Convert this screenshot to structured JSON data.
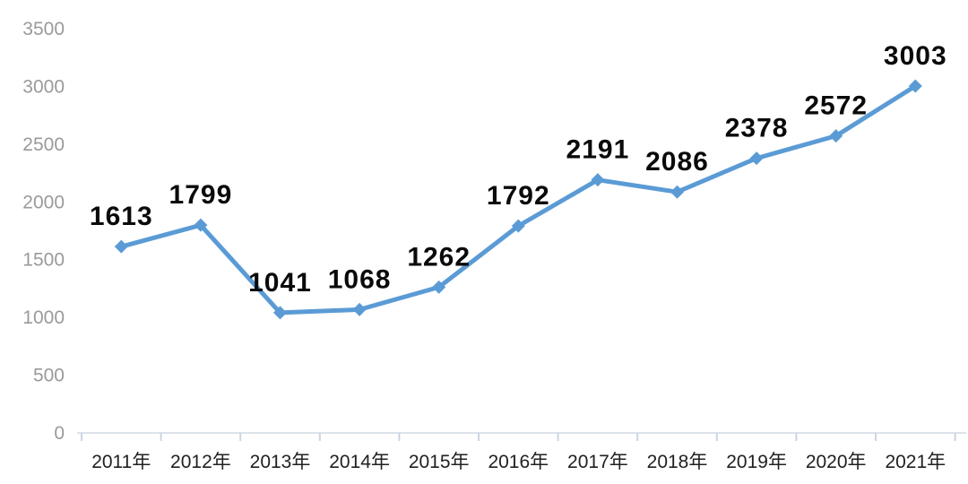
{
  "chart_data": {
    "type": "line",
    "title": "",
    "xlabel": "",
    "ylabel": "",
    "categories": [
      "2011年",
      "2012年",
      "2013年",
      "2014年",
      "2015年",
      "2016年",
      "2017年",
      "2018年",
      "2019年",
      "2020年",
      "2021年"
    ],
    "values": [
      1613,
      1799,
      1041,
      1068,
      1262,
      1792,
      2191,
      2086,
      2378,
      2572,
      3003
    ],
    "data_labels": [
      "1613",
      "1799",
      "1041",
      "1068",
      "1262",
      "1792",
      "2191",
      "2086",
      "2378",
      "2572",
      "3003"
    ],
    "ylim": [
      0,
      3500
    ],
    "yticks": [
      0,
      500,
      1000,
      1500,
      2000,
      2500,
      3000,
      3500
    ],
    "grid": false,
    "legend": false,
    "marker": "diamond",
    "colors": {
      "line": "#5B9BD5",
      "marker": "#5B9BD5",
      "data_label": "#0a0a0a",
      "y_tick_label": "#9a9a9a",
      "x_tick_label": "#212121",
      "axis_line": "#dde3ea",
      "tick_mark": "#ccd6e0",
      "background": "#ffffff"
    }
  }
}
